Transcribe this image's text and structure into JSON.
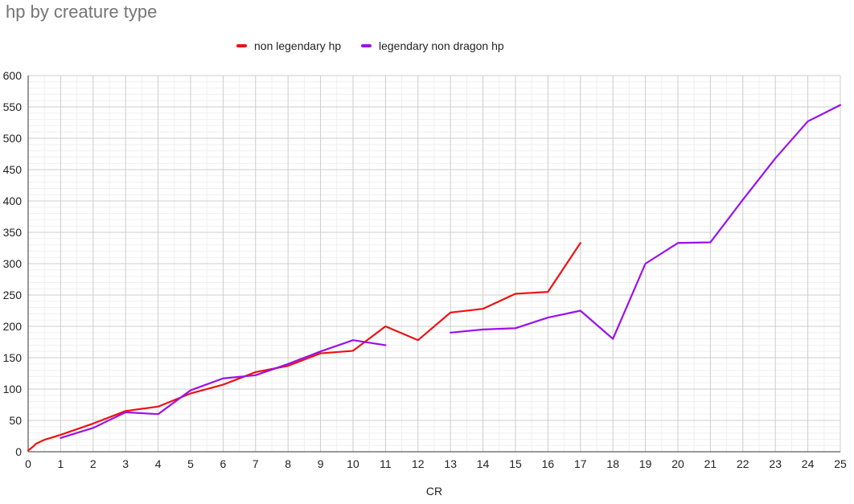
{
  "chart_data": {
    "type": "line",
    "title": "hp by creature type",
    "xlabel": "CR",
    "ylabel": "",
    "xlim": [
      0,
      25
    ],
    "ylim": [
      0,
      600
    ],
    "x_ticks": [
      0,
      1,
      2,
      3,
      4,
      5,
      6,
      7,
      8,
      9,
      10,
      11,
      12,
      13,
      14,
      15,
      16,
      17,
      18,
      19,
      20,
      21,
      22,
      23,
      24,
      25
    ],
    "y_ticks": [
      0,
      50,
      100,
      150,
      200,
      250,
      300,
      350,
      400,
      450,
      500,
      550,
      600
    ],
    "grid": true,
    "legend_position": "top",
    "series": [
      {
        "name": "non legendary hp",
        "color": "#ee1111",
        "segments": [
          [
            [
              0,
              2
            ],
            [
              0.125,
              7
            ],
            [
              0.25,
              13
            ],
            [
              0.5,
              19
            ],
            [
              1,
              27
            ],
            [
              2,
              45
            ],
            [
              3,
              65
            ],
            [
              4,
              72
            ],
            [
              5,
              93
            ],
            [
              6,
              107
            ],
            [
              7,
              127
            ],
            [
              8,
              137
            ],
            [
              9,
              157
            ],
            [
              10,
              161
            ],
            [
              11,
              200
            ],
            [
              12,
              178
            ],
            [
              13,
              222
            ],
            [
              14,
              228
            ],
            [
              15,
              252
            ],
            [
              16,
              255
            ],
            [
              17,
              333
            ]
          ]
        ]
      },
      {
        "name": "legendary non dragon hp",
        "color": "#9b10ee",
        "segments": [
          [
            [
              1,
              22
            ],
            [
              2,
              38
            ],
            [
              3,
              63
            ],
            [
              4,
              60
            ],
            [
              5,
              98
            ],
            [
              6,
              117
            ],
            [
              7,
              122
            ],
            [
              8,
              140
            ],
            [
              9,
              160
            ],
            [
              10,
              178
            ],
            [
              11,
              170
            ]
          ],
          [
            [
              13,
              190
            ],
            [
              14,
              195
            ],
            [
              15,
              197
            ],
            [
              16,
              214
            ],
            [
              17,
              225
            ],
            [
              18,
              180
            ],
            [
              19,
              300
            ],
            [
              20,
              333
            ],
            [
              21,
              334
            ],
            [
              22,
              402
            ],
            [
              23,
              468
            ],
            [
              24,
              527
            ],
            [
              25,
              553
            ]
          ]
        ]
      }
    ]
  }
}
